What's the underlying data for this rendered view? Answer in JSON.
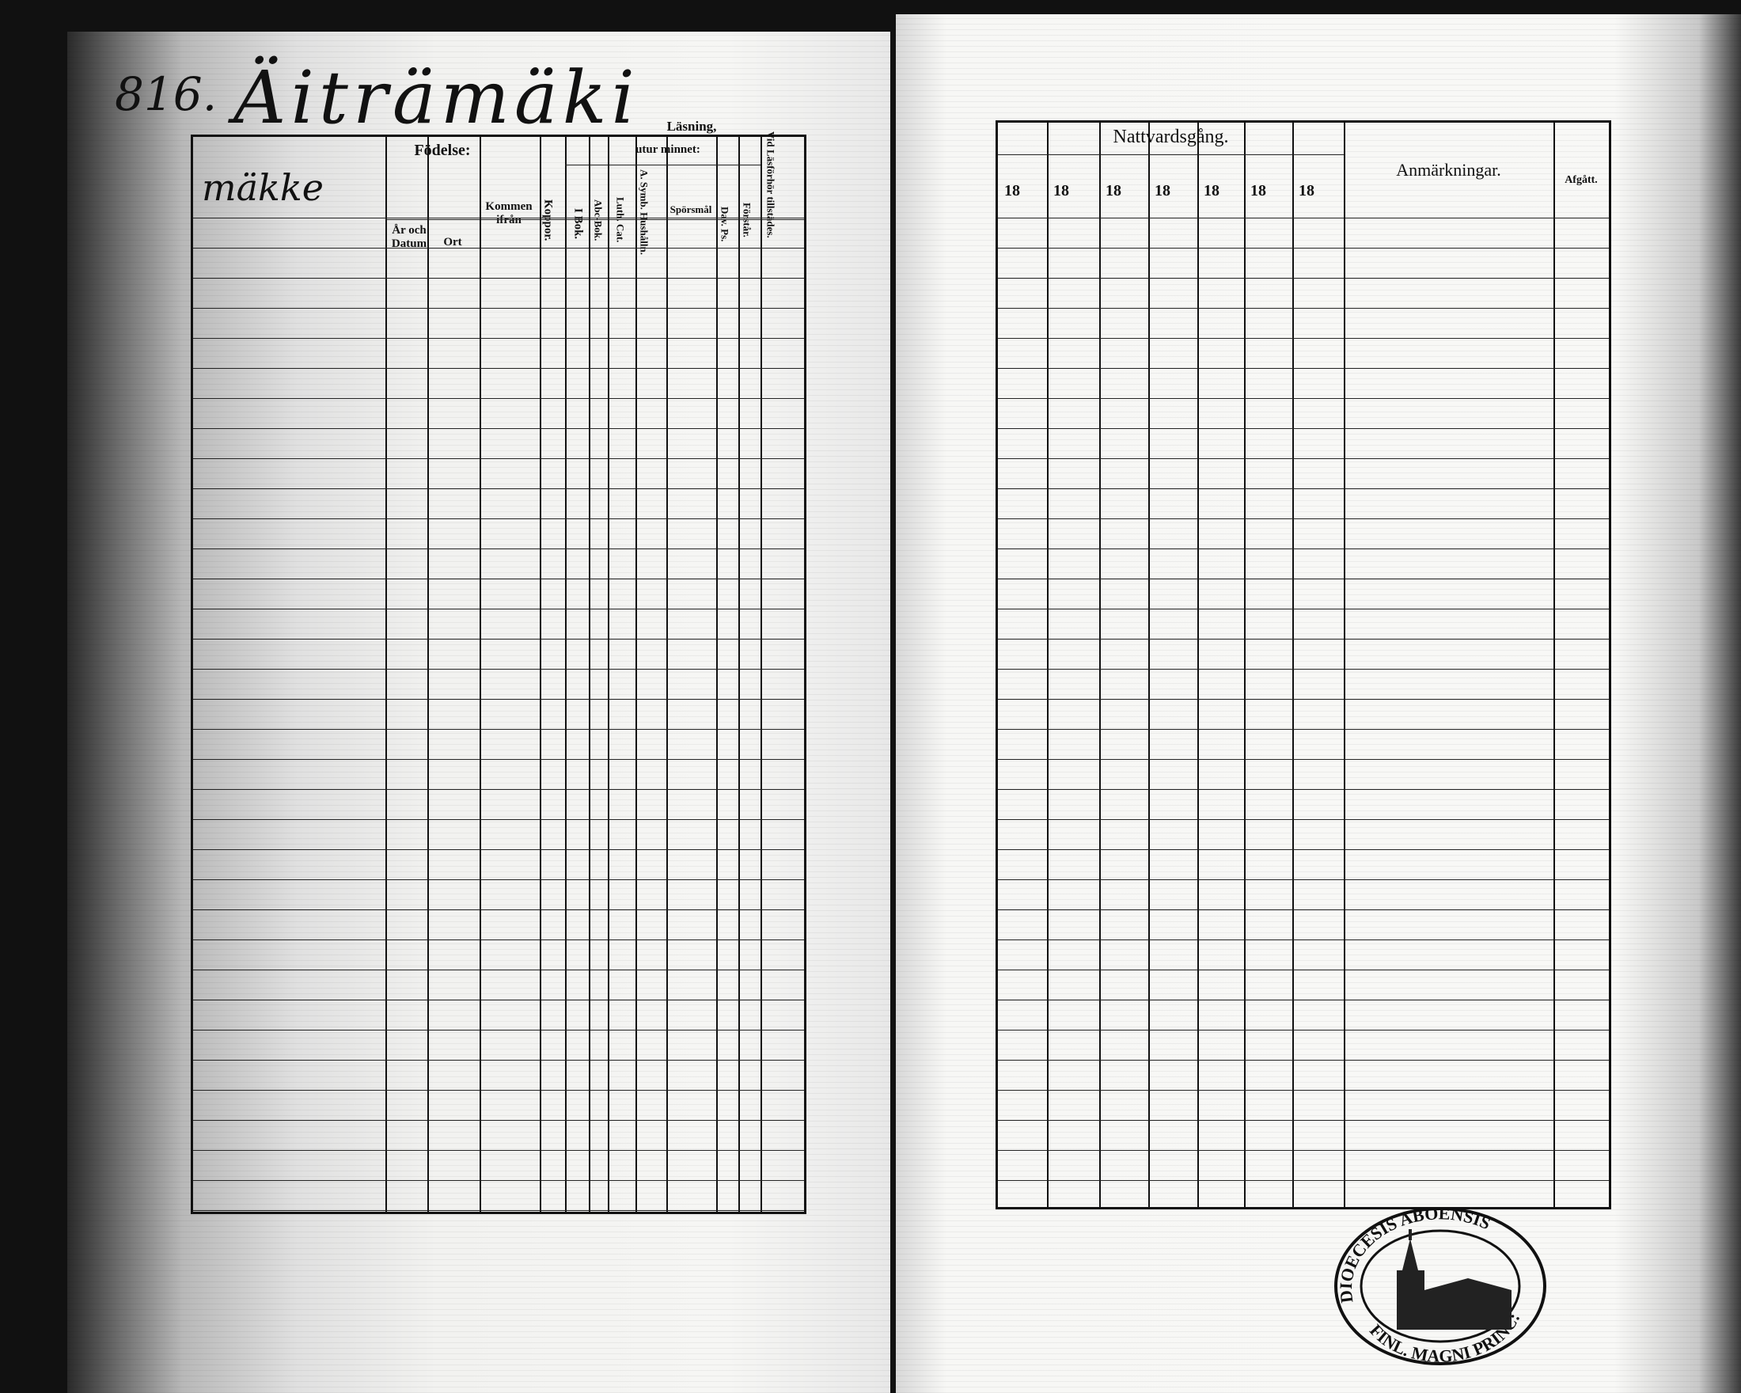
{
  "left_page": {
    "page_number": "816.",
    "farm_name": "Äiträmäki",
    "first_entry": "mäkke",
    "headers": {
      "fodelse": "Födelse:",
      "ar_och_datum": "År och Datum",
      "ort": "Ort",
      "kommen_ifran": "Kommen ifrån",
      "koppor": "Koppor.",
      "lasning": "Läsning,",
      "utur_minnet": "utur minnet:",
      "i_bok": "I Bok.",
      "abc_bok": "Abc-Bok.",
      "luth_cat": "Luth. Cat.",
      "a_symb": "A. Symb. Hushålln.",
      "sporsmal": "Spörsmål",
      "dav_ps": "Dav. Ps.",
      "forstar": "Förstår.",
      "vid_lasforhor": "Vid Läsförhör tillstädes."
    }
  },
  "right_page": {
    "headers": {
      "nattvardsgang": "Nattvardsgång.",
      "years": [
        "18",
        "18",
        "18",
        "18",
        "18",
        "18",
        "18"
      ],
      "anmarkningar": "Anmärkningar.",
      "afgatt": "Afgått."
    }
  },
  "stamp": {
    "text": "DIOECESIS ABOENSIS MAGNI PRINC: FINL."
  },
  "colors": {
    "ink": "#111111",
    "paper": "#f4f4f2"
  }
}
